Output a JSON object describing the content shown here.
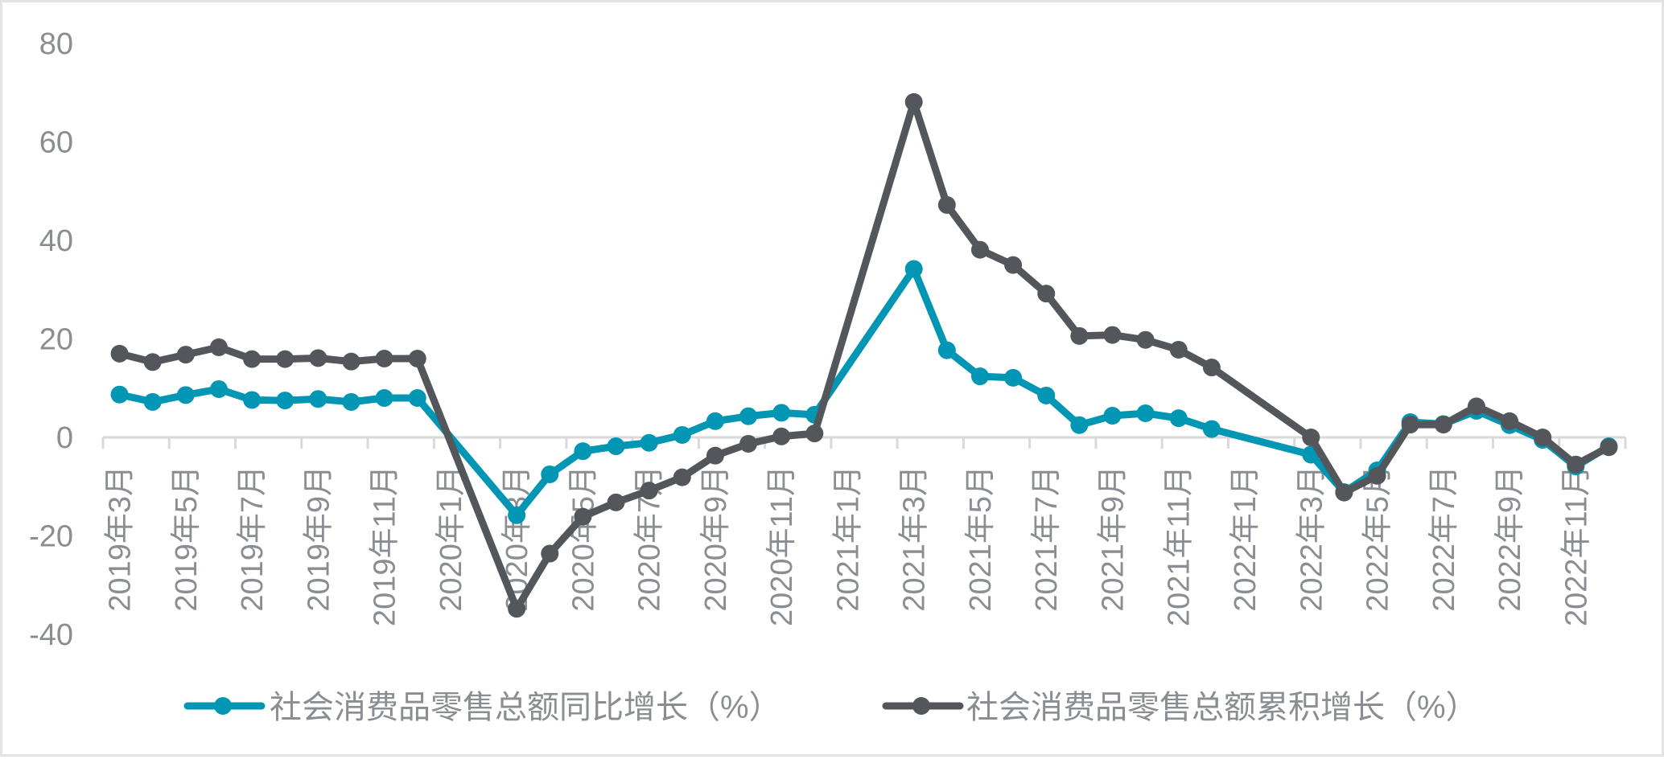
{
  "chart_data": {
    "type": "line",
    "title": "",
    "xlabel": "",
    "ylabel": "",
    "ylim": [
      -40,
      80
    ],
    "yticks": [
      80,
      60,
      40,
      20,
      0,
      -20,
      -40
    ],
    "grid": false,
    "legend_position": "bottom",
    "categories": [
      "2019年3月",
      "2019年4月",
      "2019年5月",
      "2019年6月",
      "2019年7月",
      "2019年8月",
      "2019年9月",
      "2019年10月",
      "2019年11月",
      "2019年12月",
      "2020年1月",
      "2020年2月",
      "2020年3月",
      "2020年4月",
      "2020年5月",
      "2020年6月",
      "2020年7月",
      "2020年8月",
      "2020年9月",
      "2020年10月",
      "2020年11月",
      "2020年12月",
      "2021年1月",
      "2021年2月",
      "2021年3月",
      "2021年4月",
      "2021年5月",
      "2021年6月",
      "2021年7月",
      "2021年8月",
      "2021年9月",
      "2021年10月",
      "2021年11月",
      "2021年12月",
      "2022年1月",
      "2022年2月",
      "2022年3月",
      "2022年4月",
      "2022年5月",
      "2022年6月",
      "2022年7月",
      "2022年8月",
      "2022年9月",
      "2022年10月",
      "2022年11月",
      "2022年12月"
    ],
    "series": [
      {
        "name": "社会消费品零售总额同比增长（%）",
        "color": "#0096b4",
        "values": [
          8.7,
          7.2,
          8.6,
          9.8,
          7.6,
          7.5,
          7.8,
          7.2,
          8.0,
          8.0,
          null,
          null,
          -15.8,
          -7.5,
          -2.8,
          -1.8,
          -1.1,
          0.5,
          3.3,
          4.3,
          5.0,
          4.6,
          null,
          null,
          34.2,
          17.7,
          12.4,
          12.1,
          8.5,
          2.5,
          4.4,
          4.9,
          3.9,
          1.7,
          null,
          null,
          -3.5,
          -11.1,
          -6.7,
          3.1,
          2.7,
          5.4,
          2.5,
          -0.5,
          -5.9,
          -1.8
        ]
      },
      {
        "name": "社会消费品零售总额累积增长（%）",
        "color": "#53575b",
        "values": [
          17.0,
          15.3,
          16.8,
          18.3,
          15.9,
          15.9,
          16.1,
          15.4,
          16.0,
          16.0,
          null,
          null,
          -34.8,
          -23.6,
          -16.1,
          -13.2,
          -10.8,
          -8.1,
          -3.7,
          -1.3,
          0.2,
          0.8,
          null,
          null,
          68.1,
          47.2,
          38.1,
          35.0,
          29.2,
          20.6,
          20.8,
          19.8,
          17.8,
          14.2,
          null,
          null,
          0.0,
          -11.2,
          -7.8,
          2.6,
          2.6,
          6.3,
          3.3,
          0.0,
          -5.5,
          -2.0
        ]
      }
    ]
  }
}
